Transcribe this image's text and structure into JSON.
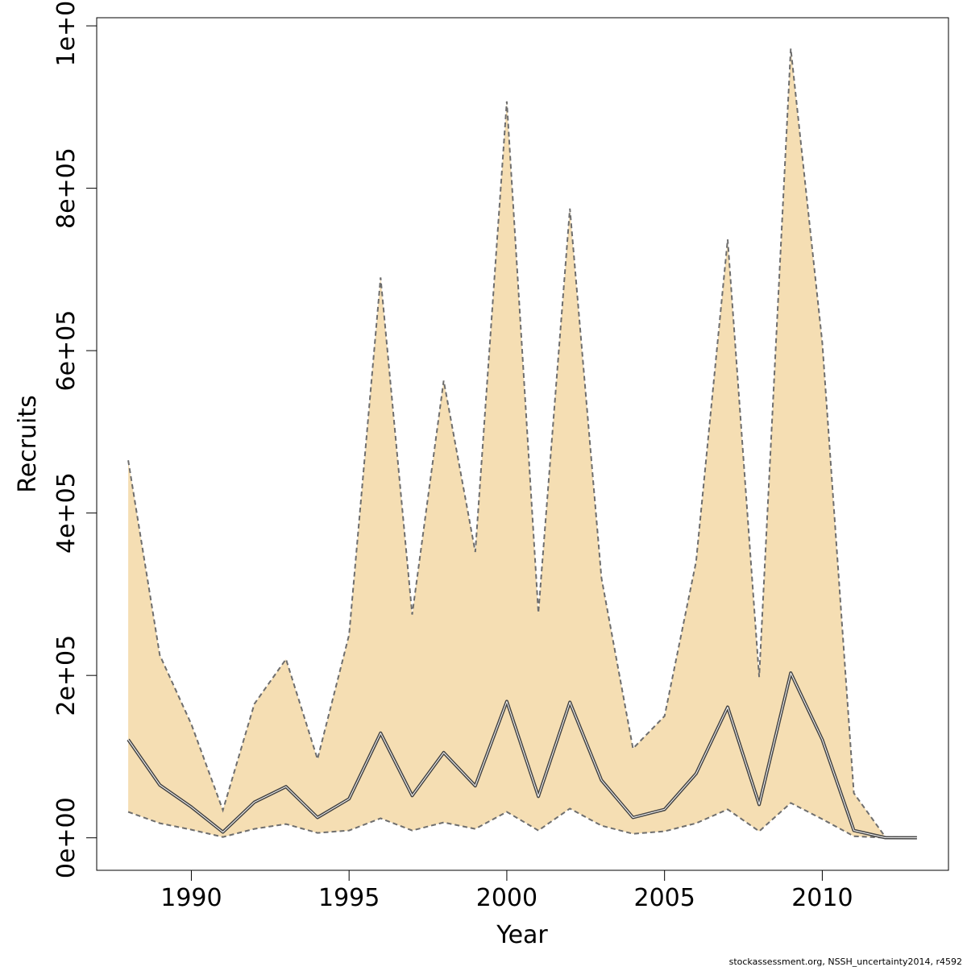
{
  "chart_data": {
    "type": "area",
    "title": "",
    "xlabel": "Year",
    "ylabel": "Recruits",
    "xlim": [
      1987.0,
      2014.0
    ],
    "ylim": [
      -40000,
      1010000
    ],
    "xticks": [
      1990,
      1995,
      2000,
      2005,
      2010
    ],
    "xtick_labels": [
      "1990",
      "1995",
      "2000",
      "2005",
      "2010"
    ],
    "yticks": [
      0,
      200000,
      400000,
      600000,
      800000,
      1000000
    ],
    "ytick_labels": [
      "0e+00",
      "2e+05",
      "4e+05",
      "6e+05",
      "8e+05",
      "1e+06"
    ],
    "grid": false,
    "legend": "none",
    "band_color": "#F5DEB3",
    "band_edge_color": "#6E6E6E",
    "median_color": "#444444",
    "x": [
      1988,
      1989,
      1990,
      1991,
      1992,
      1993,
      1994,
      1995,
      1996,
      1997,
      1998,
      1999,
      2000,
      2001,
      2002,
      2003,
      2004,
      2005,
      2006,
      2007,
      2008,
      2009,
      2010,
      2011,
      2012,
      2013
    ],
    "series": [
      {
        "role": "upper",
        "values": [
          465000,
          225000,
          140000,
          34000,
          165000,
          220000,
          97000,
          250000,
          690000,
          275000,
          563000,
          352000,
          907000,
          277000,
          775000,
          320000,
          110000,
          150000,
          340000,
          737000,
          198000,
          972000,
          610000,
          55000,
          1000,
          500
        ]
      },
      {
        "role": "median",
        "values": [
          121000,
          65000,
          38000,
          7000,
          44000,
          63000,
          25000,
          48000,
          129000,
          52000,
          105000,
          64000,
          168000,
          51000,
          167000,
          71000,
          25000,
          35000,
          79000,
          161000,
          41000,
          203000,
          121000,
          9000,
          200,
          100
        ]
      },
      {
        "role": "lower",
        "values": [
          32000,
          18000,
          10000,
          1000,
          11000,
          17000,
          6000,
          9000,
          24000,
          9000,
          19000,
          11000,
          32000,
          9000,
          36000,
          15000,
          5000,
          8000,
          18000,
          35000,
          8000,
          43000,
          23000,
          2000,
          50,
          30
        ]
      }
    ]
  },
  "caption": "stockassessment.org, NSSH_uncertainty2014, r4592"
}
